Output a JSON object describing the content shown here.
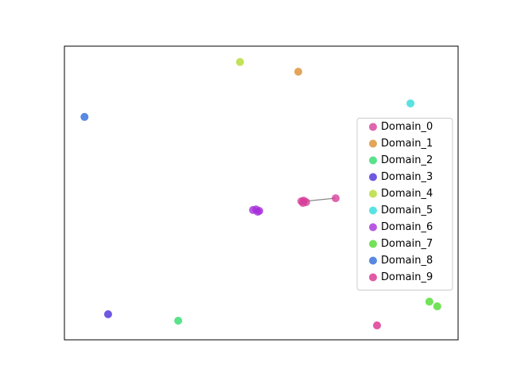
{
  "chart_data": {
    "type": "scatter",
    "xlim": [
      0,
      100
    ],
    "ylim": [
      0,
      100
    ],
    "legend": "right",
    "marker_opacity": 0.8,
    "series": [
      {
        "name": "Domain_0",
        "color": "#d63f9a",
        "x": [
          60.2,
          60.8,
          61.4,
          60.6,
          68.9
        ],
        "y": [
          47.2,
          47.4,
          46.9,
          46.6,
          48.2
        ]
      },
      {
        "name": "Domain_1",
        "color": "#db8f2f",
        "x": [
          59.4
        ],
        "y": [
          91.3
        ]
      },
      {
        "name": "Domain_2",
        "color": "#2fdb6b",
        "x": [
          28.9
        ],
        "y": [
          6.5
        ]
      },
      {
        "name": "Domain_3",
        "color": "#4a2fdb",
        "x": [
          11.1
        ],
        "y": [
          8.7
        ]
      },
      {
        "name": "Domain_4",
        "color": "#b3db2f",
        "x": [
          44.6
        ],
        "y": [
          94.6
        ]
      },
      {
        "name": "Domain_5",
        "color": "#2fdbdb",
        "x": [
          87.9
        ],
        "y": [
          80.5
        ]
      },
      {
        "name": "Domain_6",
        "color": "#a62fdb",
        "x": [
          47.9,
          48.7,
          49.5,
          49.1
        ],
        "y": [
          44.2,
          44.4,
          43.9,
          43.6
        ]
      },
      {
        "name": "Domain_7",
        "color": "#4fdb2f",
        "x": [
          92.7,
          94.7
        ],
        "y": [
          13.0,
          11.4
        ]
      },
      {
        "name": "Domain_8",
        "color": "#2f6bdb",
        "x": [
          5.1
        ],
        "y": [
          75.9
        ]
      },
      {
        "name": "Domain_9",
        "color": "#db2f8f",
        "x": [
          79.4
        ],
        "y": [
          4.9
        ]
      }
    ]
  }
}
